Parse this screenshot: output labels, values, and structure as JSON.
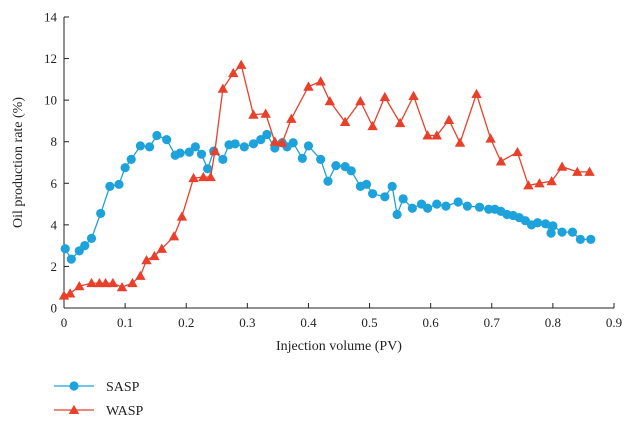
{
  "chart_data": {
    "type": "line",
    "xlabel": "Injection volume (PV)",
    "ylabel": "Oil production rate (%)",
    "xlim": [
      0,
      0.9
    ],
    "ylim": [
      0,
      14
    ],
    "xticks": [
      0,
      0.1,
      0.2,
      0.3,
      0.4,
      0.5,
      0.6,
      0.7,
      0.8,
      0.9
    ],
    "xtick_labels": [
      "0",
      "0.1",
      "0.2",
      "0.3",
      "0.4",
      "0.5",
      "0.6",
      "0.7",
      "0.8",
      "0.9"
    ],
    "yticks": [
      0,
      2,
      4,
      6,
      8,
      10,
      12,
      14
    ],
    "ytick_labels": [
      "0",
      "2",
      "4",
      "6",
      "8",
      "10",
      "12",
      "14"
    ],
    "grid": false,
    "legend_position": "bottom-left",
    "series": [
      {
        "name": "SASP",
        "color": "#1da2dc",
        "marker": "circle",
        "points": [
          [
            0.002,
            2.85
          ],
          [
            0.012,
            2.35
          ],
          [
            0.025,
            2.75
          ],
          [
            0.034,
            3.0
          ],
          [
            0.045,
            3.35
          ],
          [
            0.06,
            4.55
          ],
          [
            0.075,
            5.85
          ],
          [
            0.09,
            5.95
          ],
          [
            0.1,
            6.75
          ],
          [
            0.11,
            7.15
          ],
          [
            0.125,
            7.8
          ],
          [
            0.14,
            7.75
          ],
          [
            0.152,
            8.3
          ],
          [
            0.168,
            8.1
          ],
          [
            0.182,
            7.35
          ],
          [
            0.19,
            7.45
          ],
          [
            0.205,
            7.5
          ],
          [
            0.215,
            7.75
          ],
          [
            0.225,
            7.4
          ],
          [
            0.235,
            6.7
          ],
          [
            0.245,
            7.55
          ],
          [
            0.26,
            7.15
          ],
          [
            0.27,
            7.85
          ],
          [
            0.28,
            7.9
          ],
          [
            0.295,
            7.75
          ],
          [
            0.31,
            7.9
          ],
          [
            0.322,
            8.1
          ],
          [
            0.332,
            8.35
          ],
          [
            0.345,
            7.7
          ],
          [
            0.357,
            7.95
          ],
          [
            0.365,
            7.75
          ],
          [
            0.375,
            7.95
          ],
          [
            0.39,
            7.2
          ],
          [
            0.4,
            7.8
          ],
          [
            0.42,
            7.15
          ],
          [
            0.432,
            6.1
          ],
          [
            0.445,
            6.85
          ],
          [
            0.46,
            6.8
          ],
          [
            0.47,
            6.6
          ],
          [
            0.485,
            5.85
          ],
          [
            0.495,
            5.95
          ],
          [
            0.505,
            5.5
          ],
          [
            0.525,
            5.35
          ],
          [
            0.537,
            5.85
          ],
          [
            0.545,
            4.5
          ],
          [
            0.555,
            5.25
          ],
          [
            0.57,
            4.8
          ],
          [
            0.585,
            5.0
          ],
          [
            0.595,
            4.8
          ],
          [
            0.61,
            5.0
          ],
          [
            0.625,
            4.9
          ],
          [
            0.645,
            5.1
          ],
          [
            0.66,
            4.9
          ],
          [
            0.68,
            4.85
          ],
          [
            0.695,
            4.75
          ],
          [
            0.705,
            4.75
          ],
          [
            0.715,
            4.65
          ],
          [
            0.725,
            4.5
          ],
          [
            0.735,
            4.45
          ],
          [
            0.745,
            4.35
          ],
          [
            0.755,
            4.2
          ],
          [
            0.765,
            4.0
          ],
          [
            0.775,
            4.1
          ],
          [
            0.788,
            4.05
          ],
          [
            0.797,
            3.6
          ],
          [
            0.8,
            3.95
          ],
          [
            0.815,
            3.65
          ],
          [
            0.832,
            3.65
          ],
          [
            0.845,
            3.3
          ],
          [
            0.862,
            3.3
          ]
        ]
      },
      {
        "name": "WASP",
        "color": "#e8402a",
        "marker": "triangle",
        "points": [
          [
            0.0,
            0.6
          ],
          [
            0.01,
            0.7
          ],
          [
            0.025,
            1.05
          ],
          [
            0.045,
            1.2
          ],
          [
            0.058,
            1.2
          ],
          [
            0.068,
            1.2
          ],
          [
            0.08,
            1.2
          ],
          [
            0.095,
            1.0
          ],
          [
            0.112,
            1.2
          ],
          [
            0.125,
            1.55
          ],
          [
            0.135,
            2.3
          ],
          [
            0.148,
            2.5
          ],
          [
            0.16,
            2.85
          ],
          [
            0.18,
            3.45
          ],
          [
            0.193,
            4.4
          ],
          [
            0.212,
            6.25
          ],
          [
            0.228,
            6.3
          ],
          [
            0.24,
            6.3
          ],
          [
            0.247,
            7.55
          ],
          [
            0.26,
            10.55
          ],
          [
            0.277,
            11.3
          ],
          [
            0.29,
            11.7
          ],
          [
            0.31,
            9.3
          ],
          [
            0.33,
            9.35
          ],
          [
            0.345,
            8.0
          ],
          [
            0.357,
            7.95
          ],
          [
            0.372,
            9.1
          ],
          [
            0.4,
            10.65
          ],
          [
            0.42,
            10.9
          ],
          [
            0.435,
            9.95
          ],
          [
            0.46,
            8.95
          ],
          [
            0.485,
            9.95
          ],
          [
            0.505,
            8.75
          ],
          [
            0.525,
            10.15
          ],
          [
            0.55,
            8.9
          ],
          [
            0.572,
            10.2
          ],
          [
            0.595,
            8.3
          ],
          [
            0.61,
            8.3
          ],
          [
            0.63,
            9.05
          ],
          [
            0.648,
            7.95
          ],
          [
            0.675,
            10.3
          ],
          [
            0.698,
            8.15
          ],
          [
            0.715,
            7.05
          ],
          [
            0.742,
            7.5
          ],
          [
            0.76,
            5.9
          ],
          [
            0.778,
            6.0
          ],
          [
            0.798,
            6.1
          ],
          [
            0.815,
            6.8
          ],
          [
            0.84,
            6.55
          ],
          [
            0.86,
            6.55
          ]
        ]
      }
    ]
  }
}
